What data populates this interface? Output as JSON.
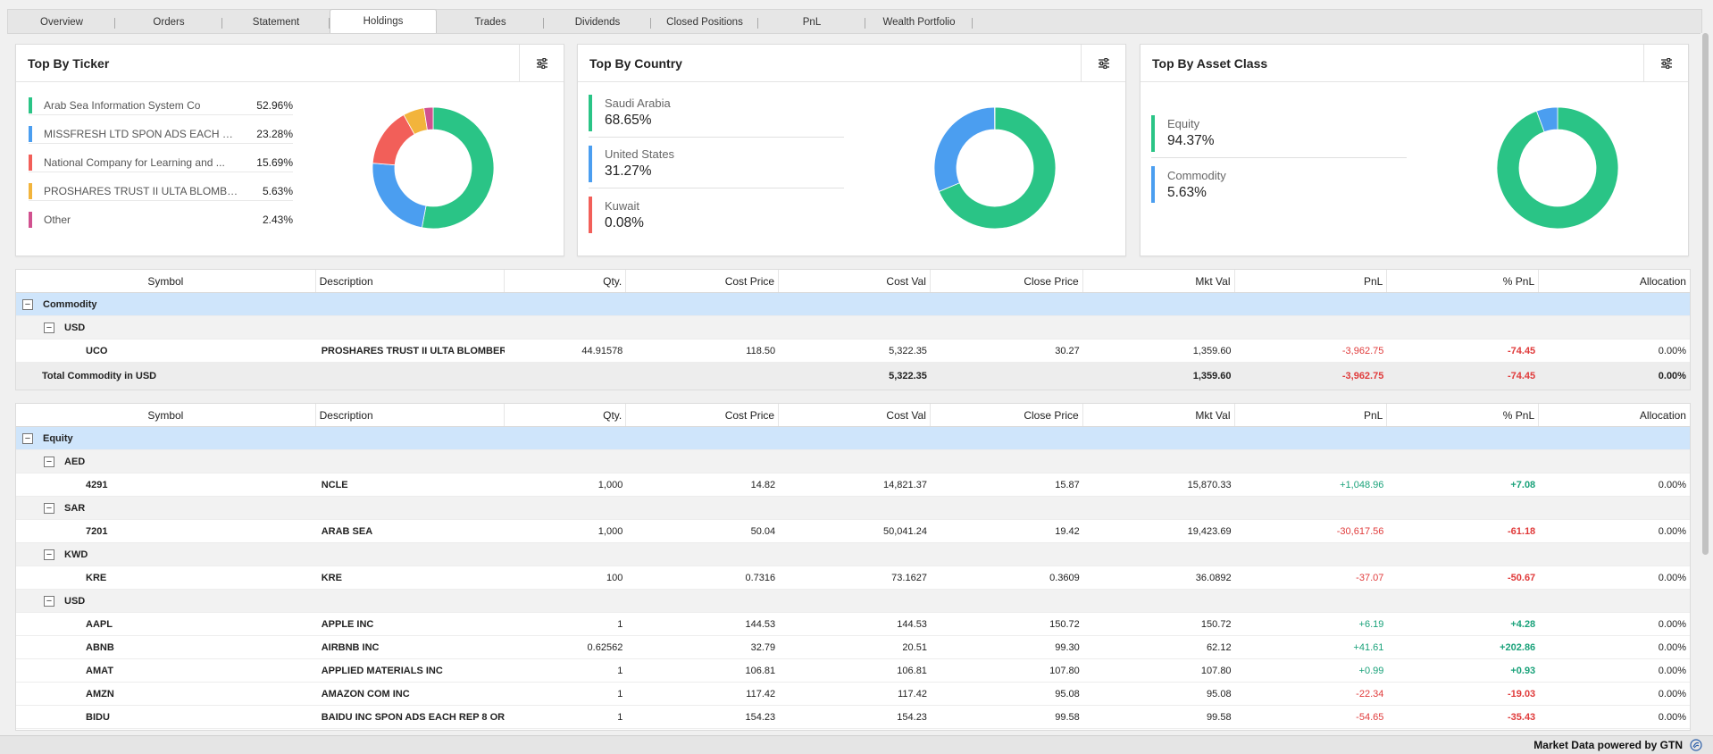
{
  "tabs": [
    {
      "label": "Overview",
      "active": false
    },
    {
      "label": "Orders",
      "active": false
    },
    {
      "label": "Statement",
      "active": false
    },
    {
      "label": "Holdings",
      "active": true
    },
    {
      "label": "Trades",
      "active": false
    },
    {
      "label": "Dividends",
      "active": false
    },
    {
      "label": "Closed Positions",
      "active": false
    },
    {
      "label": "PnL",
      "active": false
    },
    {
      "label": "Wealth Portfolio",
      "active": false
    }
  ],
  "colors": {
    "green": "#2ac486",
    "blue": "#4b9ef0",
    "red": "#f25f59",
    "yellow": "#f2b43c",
    "pink": "#d1518f",
    "positive": "#1aa27a",
    "negative": "#e03b3b"
  },
  "cards": {
    "ticker": {
      "title": "Top By Ticker",
      "items": [
        {
          "name": "Arab Sea Information System Co",
          "value": "52.96%",
          "pct": 52.96,
          "color": "#2ac486"
        },
        {
          "name": "MISSFRESH LTD SPON ADS EACH RE...",
          "value": "23.28%",
          "pct": 23.28,
          "color": "#4b9ef0"
        },
        {
          "name": "National Company for Learning and ...",
          "value": "15.69%",
          "pct": 15.69,
          "color": "#f25f59"
        },
        {
          "name": "PROSHARES TRUST II ULTA BLOMBE...",
          "value": "5.63%",
          "pct": 5.63,
          "color": "#f2b43c"
        },
        {
          "name": "Other",
          "value": "2.43%",
          "pct": 2.43,
          "color": "#d1518f"
        }
      ]
    },
    "country": {
      "title": "Top By Country",
      "items": [
        {
          "name": "Saudi Arabia",
          "value": "68.65%",
          "pct": 68.65,
          "color": "#2ac486"
        },
        {
          "name": "United States",
          "value": "31.27%",
          "pct": 31.27,
          "color": "#4b9ef0"
        },
        {
          "name": "Kuwait",
          "value": "0.08%",
          "pct": 0.08,
          "color": "#f25f59"
        }
      ]
    },
    "asset": {
      "title": "Top By Asset Class",
      "items": [
        {
          "name": "Equity",
          "value": "94.37%",
          "pct": 94.37,
          "color": "#2ac486"
        },
        {
          "name": "Commodity",
          "value": "5.63%",
          "pct": 5.63,
          "color": "#4b9ef0"
        }
      ]
    }
  },
  "columns": {
    "symbol": "Symbol",
    "description": "Description",
    "qty": "Qty.",
    "cost_price": "Cost Price",
    "cost_val": "Cost Val",
    "close_price": "Close Price",
    "mkt_val": "Mkt Val",
    "pnl": "PnL",
    "pct_pnl": "% PnL",
    "allocation": "Allocation"
  },
  "commodity_table": {
    "group": "Commodity",
    "currency": "USD",
    "rows": [
      {
        "symbol": "UCO",
        "description": "PROSHARES TRUST II ULTA BLOMBER...",
        "qty": "44.91578",
        "cost_price": "118.50",
        "cost_val": "5,322.35",
        "close_price": "30.27",
        "mkt_val": "1,359.60",
        "pnl": "-3,962.75",
        "pct_pnl": "-74.45",
        "allocation": "0.00%"
      }
    ],
    "total": {
      "label": "Total Commodity in USD",
      "cost_val": "5,322.35",
      "mkt_val": "1,359.60",
      "pnl": "-3,962.75",
      "pct_pnl": "-74.45",
      "allocation": "0.00%"
    }
  },
  "equity_table": {
    "group": "Equity",
    "sections": [
      {
        "currency": "AED",
        "rows": [
          {
            "symbol": "4291",
            "description": "NCLE",
            "qty": "1,000",
            "cost_price": "14.82",
            "cost_val": "14,821.37",
            "close_price": "15.87",
            "mkt_val": "15,870.33",
            "pnl": "+1,048.96",
            "pct_pnl": "+7.08",
            "allocation": "0.00%"
          }
        ]
      },
      {
        "currency": "SAR",
        "rows": [
          {
            "symbol": "7201",
            "description": "ARAB SEA",
            "qty": "1,000",
            "cost_price": "50.04",
            "cost_val": "50,041.24",
            "close_price": "19.42",
            "mkt_val": "19,423.69",
            "pnl": "-30,617.56",
            "pct_pnl": "-61.18",
            "allocation": "0.00%"
          }
        ]
      },
      {
        "currency": "KWD",
        "rows": [
          {
            "symbol": "KRE",
            "description": "KRE",
            "qty": "100",
            "cost_price": "0.7316",
            "cost_val": "73.1627",
            "close_price": "0.3609",
            "mkt_val": "36.0892",
            "pnl": "-37.07",
            "pct_pnl": "-50.67",
            "allocation": "0.00%"
          }
        ]
      },
      {
        "currency": "USD",
        "rows": [
          {
            "symbol": "AAPL",
            "description": "APPLE INC",
            "qty": "1",
            "cost_price": "144.53",
            "cost_val": "144.53",
            "close_price": "150.72",
            "mkt_val": "150.72",
            "pnl": "+6.19",
            "pct_pnl": "+4.28",
            "allocation": "0.00%"
          },
          {
            "symbol": "ABNB",
            "description": "AIRBNB INC",
            "qty": "0.62562",
            "cost_price": "32.79",
            "cost_val": "20.51",
            "close_price": "99.30",
            "mkt_val": "62.12",
            "pnl": "+41.61",
            "pct_pnl": "+202.86",
            "allocation": "0.00%"
          },
          {
            "symbol": "AMAT",
            "description": "APPLIED MATERIALS INC",
            "qty": "1",
            "cost_price": "106.81",
            "cost_val": "106.81",
            "close_price": "107.80",
            "mkt_val": "107.80",
            "pnl": "+0.99",
            "pct_pnl": "+0.93",
            "allocation": "0.00%"
          },
          {
            "symbol": "AMZN",
            "description": "AMAZON COM INC",
            "qty": "1",
            "cost_price": "117.42",
            "cost_val": "117.42",
            "close_price": "95.08",
            "mkt_val": "95.08",
            "pnl": "-22.34",
            "pct_pnl": "-19.03",
            "allocation": "0.00%"
          },
          {
            "symbol": "BIDU",
            "description": "BAIDU INC SPON ADS EACH REP 8 OR...",
            "qty": "1",
            "cost_price": "154.23",
            "cost_val": "154.23",
            "close_price": "99.58",
            "mkt_val": "99.58",
            "pnl": "-54.65",
            "pct_pnl": "-35.43",
            "allocation": "0.00%"
          }
        ]
      }
    ]
  },
  "footer": {
    "text": "Market Data powered by GTN",
    "icon": "gtn-logo-icon"
  }
}
